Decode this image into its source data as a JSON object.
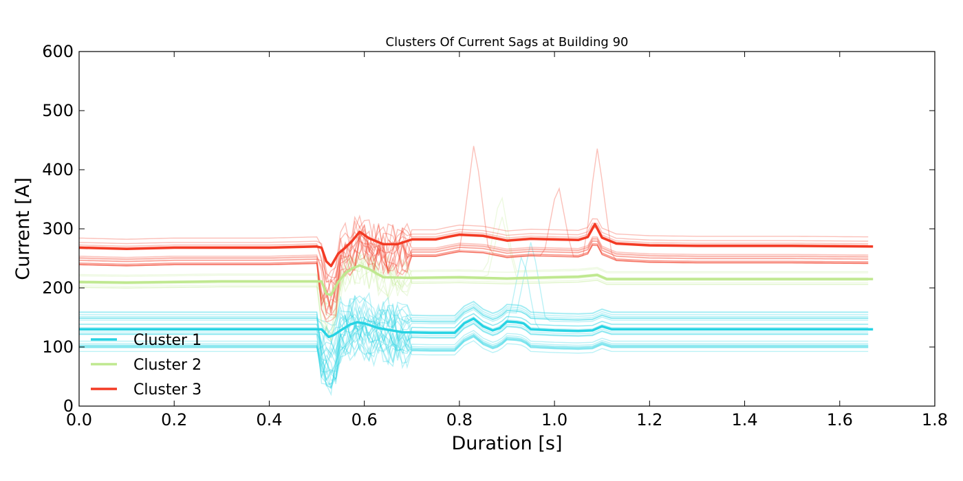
{
  "chart_data": {
    "type": "line",
    "title": "Clusters Of Current Sags at Building 90",
    "xlabel": "Duration [s]",
    "ylabel": "Current [A]",
    "xlim": [
      0.0,
      1.8
    ],
    "ylim": [
      0,
      600
    ],
    "xticks": [
      "0.0",
      "0.2",
      "0.4",
      "0.6",
      "0.8",
      "1.0",
      "1.2",
      "1.4",
      "1.6",
      "1.8"
    ],
    "yticks": [
      "0",
      "100",
      "200",
      "300",
      "400",
      "500",
      "600"
    ],
    "grid": false,
    "legend_position": "lower-left",
    "series": [
      {
        "name": "Cluster 1",
        "color": "#27d3e3",
        "x": [
          0.0,
          0.1,
          0.2,
          0.3,
          0.4,
          0.51,
          0.525,
          0.535,
          0.55,
          0.57,
          0.585,
          0.6,
          0.63,
          0.68,
          0.74,
          0.79,
          0.81,
          0.83,
          0.85,
          0.87,
          0.885,
          0.9,
          0.92,
          0.935,
          0.95,
          1.0,
          1.05,
          1.08,
          1.1,
          1.12,
          1.2,
          1.3,
          1.4,
          1.5,
          1.67
        ],
        "values": [
          130,
          130,
          130,
          130,
          130,
          130,
          117,
          120,
          128,
          138,
          142,
          140,
          132,
          125,
          124,
          124,
          140,
          148,
          135,
          128,
          132,
          143,
          142,
          140,
          130,
          128,
          127,
          128,
          135,
          130,
          130,
          130,
          130,
          130,
          130
        ]
      },
      {
        "name": "Cluster 2",
        "color": "#bfe88f",
        "x": [
          0.0,
          0.1,
          0.2,
          0.3,
          0.4,
          0.51,
          0.52,
          0.53,
          0.545,
          0.56,
          0.575,
          0.59,
          0.61,
          0.64,
          0.7,
          0.8,
          0.9,
          1.0,
          1.05,
          1.09,
          1.11,
          1.2,
          1.3,
          1.4,
          1.5,
          1.67
        ],
        "values": [
          210,
          209,
          210,
          211,
          211,
          211,
          190,
          188,
          210,
          225,
          233,
          238,
          232,
          218,
          217,
          218,
          216,
          218,
          219,
          222,
          215,
          215,
          215,
          215,
          215,
          215
        ]
      },
      {
        "name": "Cluster 3",
        "color": "#f33a24",
        "x": [
          0.0,
          0.1,
          0.2,
          0.3,
          0.4,
          0.5,
          0.51,
          0.52,
          0.53,
          0.545,
          0.56,
          0.575,
          0.59,
          0.61,
          0.64,
          0.67,
          0.7,
          0.75,
          0.78,
          0.8,
          0.85,
          0.9,
          0.95,
          1.0,
          1.05,
          1.07,
          1.085,
          1.1,
          1.13,
          1.2,
          1.3,
          1.4,
          1.5,
          1.67
        ],
        "values": [
          268,
          266,
          268,
          268,
          268,
          270,
          268,
          245,
          237,
          258,
          268,
          280,
          295,
          284,
          274,
          274,
          282,
          282,
          287,
          290,
          288,
          280,
          283,
          282,
          281,
          286,
          308,
          285,
          275,
          272,
          271,
          271,
          271,
          270
        ]
      }
    ]
  }
}
